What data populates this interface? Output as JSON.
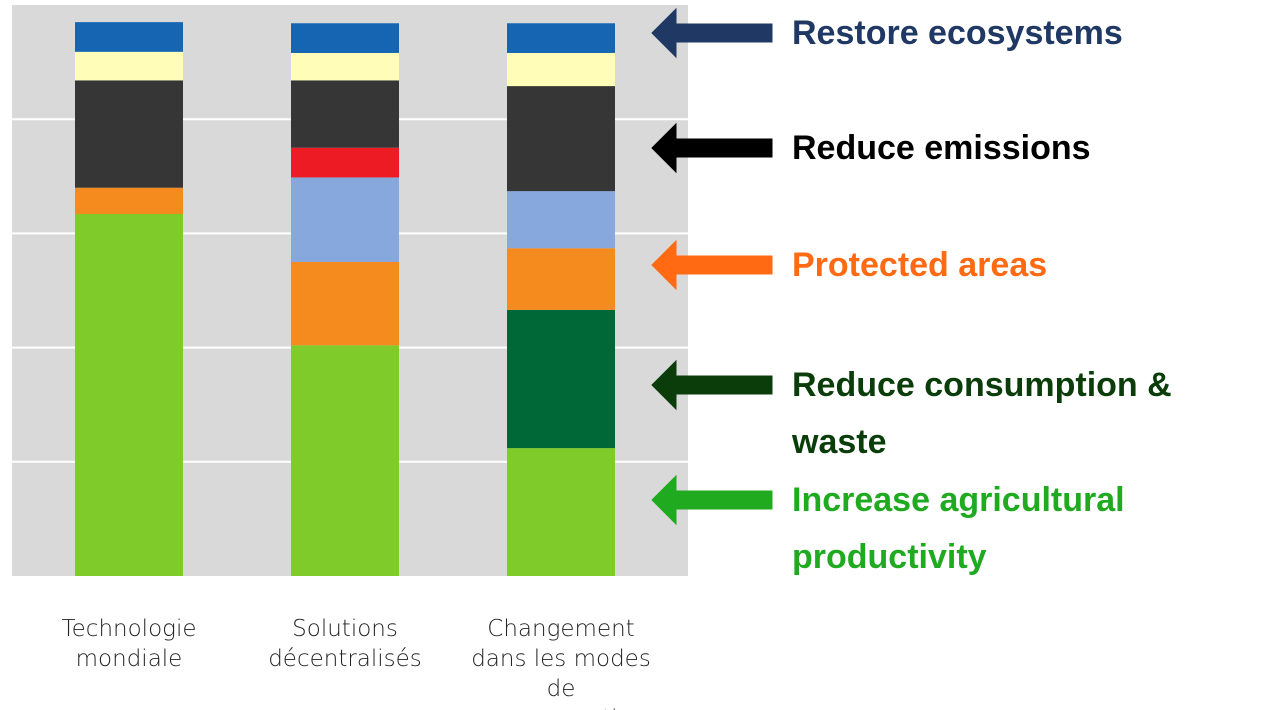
{
  "chart_data": {
    "type": "stacked_bar",
    "categories": [
      "Technologie mondiale",
      "Solutions décentralisés",
      "Changement dans les modes de consommation"
    ],
    "series": [
      {
        "color": "#7ecb2a",
        "values": [
          3.17,
          2.02,
          1.12
        ]
      },
      {
        "color": "#006837",
        "values": [
          0,
          0,
          1.21
        ]
      },
      {
        "color": "#f58a1f",
        "values": [
          0.23,
          0.73,
          0.54
        ]
      },
      {
        "color": "#86a8dc",
        "values": [
          0,
          0.74,
          0.5
        ]
      },
      {
        "color": "#ed1c24",
        "values": [
          0,
          0.26,
          0
        ]
      },
      {
        "color": "#363636",
        "values": [
          0.94,
          0.59,
          0.92
        ]
      },
      {
        "color": "#fffdb7",
        "values": [
          0.25,
          0.24,
          0.29
        ]
      },
      {
        "color": "#1565b3",
        "values": [
          0.26,
          0.26,
          0.26
        ]
      }
    ],
    "ylim": [
      0,
      5
    ],
    "grid_lines": [
      1,
      2,
      3,
      4
    ],
    "grid": true,
    "annotations": [
      {
        "text": "Restore ecosystems",
        "color": "#1f3864"
      },
      {
        "text": "Reduce emissions",
        "color": "#000000"
      },
      {
        "text": "Protected areas",
        "color": "#ff6a13"
      },
      {
        "text": "Reduce consumption & waste",
        "color": "#0b3d0b"
      },
      {
        "text": "Increase agricultural productivity",
        "color": "#1faa1f"
      }
    ]
  }
}
